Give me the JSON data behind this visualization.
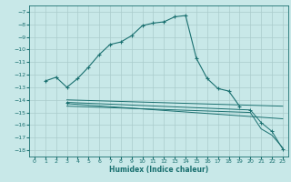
{
  "xlabel": "Humidex (Indice chaleur)",
  "ylabel": "",
  "bg_color": "#c8e8e8",
  "grid_color": "#aacccc",
  "line_color": "#1a7070",
  "xlim": [
    -0.5,
    23.5
  ],
  "ylim": [
    -18.5,
    -6.5
  ],
  "yticks": [
    -18,
    -17,
    -16,
    -15,
    -14,
    -13,
    -12,
    -11,
    -10,
    -9,
    -8,
    -7
  ],
  "xticks": [
    0,
    1,
    2,
    3,
    4,
    5,
    6,
    7,
    8,
    9,
    10,
    11,
    12,
    13,
    14,
    15,
    16,
    17,
    18,
    19,
    20,
    21,
    22,
    23
  ],
  "curve1_x": [
    1,
    2,
    3,
    4,
    5,
    6,
    7,
    8,
    9,
    10,
    11,
    12,
    13,
    14,
    15,
    16,
    17,
    18,
    19
  ],
  "curve1_y": [
    -12.5,
    -12.2,
    -13.0,
    -12.3,
    -11.4,
    -10.4,
    -9.6,
    -9.4,
    -8.9,
    -8.1,
    -7.9,
    -7.8,
    -7.4,
    -7.3,
    -10.7,
    -12.3,
    -13.1,
    -13.3,
    -14.5
  ],
  "curve2_x": [
    3,
    23
  ],
  "curve2_y": [
    -14.0,
    -14.5
  ],
  "curve3_x": [
    3,
    23
  ],
  "curve3_y": [
    -14.3,
    -15.5
  ],
  "curve4_x": [
    3,
    20,
    21,
    22,
    23
  ],
  "curve4_y": [
    -14.5,
    -15.0,
    -16.3,
    -16.8,
    -17.8
  ],
  "curve5_x": [
    3,
    20,
    21,
    22,
    23
  ],
  "curve5_y": [
    -14.2,
    -14.8,
    -15.8,
    -16.5,
    -17.9
  ]
}
